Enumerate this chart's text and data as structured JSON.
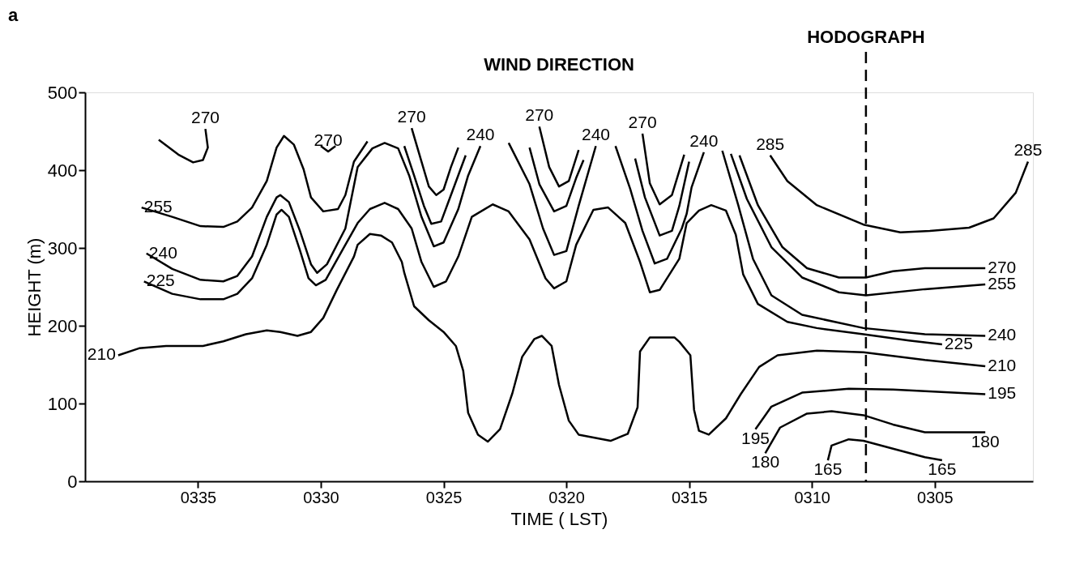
{
  "chart_data": {
    "type": "line",
    "title": "WIND DIRECTION",
    "xlabel": "TIME ( LST)",
    "ylabel": "HEIGHT (m)",
    "xlim": [
      339.6,
      301.0
    ],
    "ylim": [
      0,
      500
    ],
    "xticks": [
      {
        "value": 335,
        "label": "0335"
      },
      {
        "value": 330,
        "label": "0330"
      },
      {
        "value": 325,
        "label": "0325"
      },
      {
        "value": 320,
        "label": "0320"
      },
      {
        "value": 315,
        "label": "0315"
      },
      {
        "value": 310,
        "label": "0310"
      },
      {
        "value": 305,
        "label": "0305"
      }
    ],
    "yticks": [
      0,
      100,
      200,
      300,
      400,
      500
    ],
    "grid": false,
    "legend": false,
    "marker": "none",
    "line_style": "solid",
    "series": [
      {
        "color": "#000000",
        "x": [
          336.6,
          335.8,
          335.2,
          334.8,
          334.6,
          334.7
        ],
        "values": [
          439,
          420,
          410,
          413,
          429,
          453
        ]
      },
      {
        "color": "#000000",
        "x": [
          330.0,
          329.7,
          329.4
        ],
        "values": [
          431,
          424,
          431
        ]
      },
      {
        "color": "#000000",
        "x": [
          337.3,
          336.05,
          334.9,
          333.97,
          333.4,
          332.8,
          332.2,
          331.8,
          331.5,
          331.1,
          330.7,
          330.4,
          329.9,
          329.3,
          329.0,
          328.65,
          328.1
        ],
        "values": [
          352,
          340,
          328,
          327,
          334,
          352,
          386,
          429,
          444,
          433,
          401,
          365,
          347,
          350,
          368,
          411,
          437
        ]
      },
      {
        "color": "#000000",
        "x": [
          337.1,
          336.05,
          334.9,
          333.97,
          333.4,
          332.8,
          332.2,
          331.8,
          331.65,
          331.3,
          330.85,
          330.4,
          330.15,
          329.75,
          329.0,
          328.5,
          327.9,
          327.4,
          326.85,
          326.4,
          325.9,
          325.4,
          325.0,
          324.4,
          324.0,
          323.5
        ],
        "values": [
          293,
          273,
          259,
          257,
          264,
          289,
          340,
          365,
          368,
          359,
          322,
          279,
          268,
          279,
          325,
          404,
          428,
          435,
          428,
          393,
          340,
          302,
          307,
          350,
          393,
          431
        ]
      },
      {
        "color": "#000000",
        "x": [
          337.2,
          336.05,
          334.9,
          333.97,
          333.4,
          332.8,
          332.2,
          331.8,
          331.6,
          331.3,
          330.85,
          330.5,
          330.2,
          329.8,
          329.0,
          328.5,
          328.0,
          327.4,
          326.85,
          326.3,
          325.9,
          325.4,
          324.9,
          324.4,
          323.85,
          323.0,
          322.35,
          321.5,
          320.85,
          320.5,
          320.0,
          319.6,
          318.9,
          318.3,
          317.6,
          317.0,
          316.6,
          316.2,
          315.4,
          315.1,
          314.6,
          314.1,
          313.5,
          313.1,
          312.8,
          312.2,
          311.0,
          309.8,
          307.9,
          306.05,
          304.7
        ],
        "values": [
          257,
          241,
          234,
          234,
          241,
          261,
          304,
          343,
          349,
          340,
          297,
          261,
          252,
          259,
          304,
          332,
          350,
          358,
          350,
          325,
          282,
          250,
          257,
          289,
          340,
          356,
          347,
          311,
          261,
          248,
          257,
          304,
          349,
          352,
          332,
          282,
          243,
          246,
          286,
          332,
          348,
          355,
          348,
          317,
          266,
          228,
          205,
          197,
          189,
          181,
          176
        ]
      },
      {
        "color": "#000000",
        "x": [
          338.25,
          337.4,
          336.3,
          334.8,
          333.97,
          333.05,
          332.2,
          331.65,
          330.95,
          330.4,
          329.9,
          329.35,
          328.65,
          328.5,
          328.0,
          327.55,
          327.1,
          326.7,
          326.6,
          326.2,
          325.6,
          325.0,
          324.5,
          324.2,
          324.0,
          323.6,
          323.2,
          322.7,
          322.2,
          321.8,
          321.3,
          321.0,
          320.6,
          320.3,
          319.9,
          319.5,
          318.2,
          317.5,
          317.1,
          317.0,
          316.6,
          315.6,
          315.39,
          314.95,
          314.8,
          314.6,
          314.2,
          313.5,
          312.9,
          312.15,
          311.4,
          309.8,
          307.9,
          305.4,
          302.94
        ],
        "values": [
          162,
          171,
          174,
          174,
          180,
          189,
          194,
          192,
          187,
          192,
          210,
          246,
          289,
          304,
          318,
          316,
          307,
          282,
          268,
          225,
          207,
          192,
          174,
          142,
          88,
          60,
          51,
          67,
          113,
          160,
          183,
          187,
          174,
          124,
          78,
          60,
          52,
          61,
          95,
          167,
          185,
          185,
          179,
          162,
          92,
          65,
          60,
          81,
          112,
          147,
          162,
          168,
          166,
          156,
          148
        ]
      },
      {
        "color": "#000000",
        "x": [
          326.3,
          325.9,
          325.6,
          325.3,
          325.0,
          324.7,
          324.4
        ],
        "values": [
          454,
          411,
          379,
          368,
          375,
          404,
          429
        ]
      },
      {
        "color": "#000000",
        "x": [
          326.6,
          326.2,
          325.8,
          325.5,
          325.1,
          324.7,
          324.1
        ],
        "values": [
          431,
          393,
          354,
          331,
          334,
          368,
          419
        ]
      },
      {
        "color": "#000000",
        "x": [
          321.1,
          320.7,
          320.3,
          319.9,
          319.5
        ],
        "values": [
          456,
          404,
          379,
          386,
          426
        ]
      },
      {
        "color": "#000000",
        "x": [
          321.5,
          321.1,
          320.5,
          320.0,
          319.6,
          319.3
        ],
        "values": [
          429,
          382,
          347,
          354,
          390,
          413
        ]
      },
      {
        "color": "#000000",
        "x": [
          322.35,
          321.5,
          320.95,
          320.5,
          320.0,
          319.5,
          318.8
        ],
        "values": [
          435,
          382,
          325,
          291,
          296,
          354,
          431
        ]
      },
      {
        "color": "#000000",
        "x": [
          316.9,
          316.6,
          316.2,
          315.7,
          315.2
        ],
        "values": [
          447,
          383,
          356,
          368,
          420
        ]
      },
      {
        "color": "#000000",
        "x": [
          317.2,
          316.8,
          316.2,
          315.7,
          315.4,
          315.0
        ],
        "values": [
          415,
          365,
          316,
          322,
          354,
          411
        ]
      },
      {
        "color": "#000000",
        "x": [
          318.0,
          317.4,
          316.9,
          316.4,
          315.9,
          315.3,
          315.1,
          314.9,
          314.4
        ],
        "values": [
          431,
          376,
          322,
          280,
          286,
          325,
          344,
          378,
          423
        ]
      },
      {
        "color": "#000000",
        "x": [
          313.65,
          313.0,
          312.4,
          311.65,
          310.4,
          307.9,
          305.4,
          302.94
        ],
        "values": [
          425,
          355,
          286,
          239,
          214,
          197,
          189,
          187
        ]
      },
      {
        "color": "#000000",
        "x": [
          313.3,
          312.65,
          311.65,
          310.4,
          308.9,
          307.8,
          305.4,
          302.94
        ],
        "values": [
          421,
          363,
          301,
          262,
          243,
          239,
          247,
          253
        ]
      },
      {
        "color": "#000000",
        "x": [
          312.95,
          312.2,
          311.2,
          310.2,
          308.9,
          307.8,
          306.7,
          305.4,
          302.94
        ],
        "values": [
          419,
          355,
          301,
          274,
          262,
          262,
          270,
          274,
          274
        ]
      },
      {
        "color": "#000000",
        "x": [
          311.7,
          311.0,
          309.8,
          307.9,
          306.4,
          305.2,
          303.6,
          302.6,
          301.7,
          301.2
        ],
        "values": [
          419,
          386,
          355,
          330,
          320,
          322,
          326,
          338,
          371,
          411
        ]
      },
      {
        "color": "#000000",
        "x": [
          312.3,
          311.65,
          310.4,
          308.5,
          306.7,
          302.94
        ],
        "values": [
          67,
          96,
          114,
          119,
          118,
          112
        ]
      },
      {
        "color": "#000000",
        "x": [
          311.9,
          311.3,
          310.2,
          309.2,
          307.9,
          306.7,
          305.4,
          302.94
        ],
        "values": [
          36,
          69,
          87,
          90,
          85,
          73,
          63,
          63
        ]
      },
      {
        "color": "#000000",
        "x": [
          309.35,
          309.2,
          308.5,
          307.9,
          306.7,
          305.4,
          304.7
        ],
        "values": [
          27,
          46,
          54,
          52,
          42,
          31,
          27
        ]
      }
    ],
    "ref_lines": [
      {
        "axis": "x",
        "value": 307.8,
        "label": "HODOGRAPH",
        "color": "#000000",
        "line_style": "dashed"
      }
    ],
    "annotations": [
      "a",
      {
        "text": "270",
        "x": 334.7,
        "y": 453
      },
      {
        "text": "270",
        "x": 329.7,
        "y": 424
      },
      {
        "text": "270",
        "x": 326.3,
        "y": 454
      },
      {
        "text": "240",
        "x": 323.5,
        "y": 431
      },
      {
        "text": "270",
        "x": 321.1,
        "y": 456
      },
      {
        "text": "240",
        "x": 318.8,
        "y": 431
      },
      {
        "text": "270",
        "x": 316.9,
        "y": 447
      },
      {
        "text": "240",
        "x": 314.4,
        "y": 423
      },
      {
        "text": "285",
        "x": 311.7,
        "y": 419
      },
      {
        "text": "285",
        "x": 301.2,
        "y": 411
      },
      {
        "text": "255",
        "x": 337.3,
        "y": 352
      },
      {
        "text": "240",
        "x": 337.1,
        "y": 293
      },
      {
        "text": "225",
        "x": 337.2,
        "y": 257
      },
      {
        "text": "210",
        "x": 338.25,
        "y": 162
      },
      {
        "text": "270",
        "x": 302.94,
        "y": 274
      },
      {
        "text": "255",
        "x": 302.94,
        "y": 253
      },
      {
        "text": "240",
        "x": 302.94,
        "y": 187
      },
      {
        "text": "225",
        "x": 304.7,
        "y": 176
      },
      {
        "text": "210",
        "x": 302.94,
        "y": 148
      },
      {
        "text": "195",
        "x": 302.94,
        "y": 112
      },
      {
        "text": "180",
        "x": 302.94,
        "y": 63
      },
      {
        "text": "165",
        "x": 304.7,
        "y": 27
      },
      {
        "text": "195",
        "x": 312.3,
        "y": 67
      },
      {
        "text": "180",
        "x": 311.9,
        "y": 36
      },
      {
        "text": "165",
        "x": 309.35,
        "y": 27
      }
    ]
  }
}
